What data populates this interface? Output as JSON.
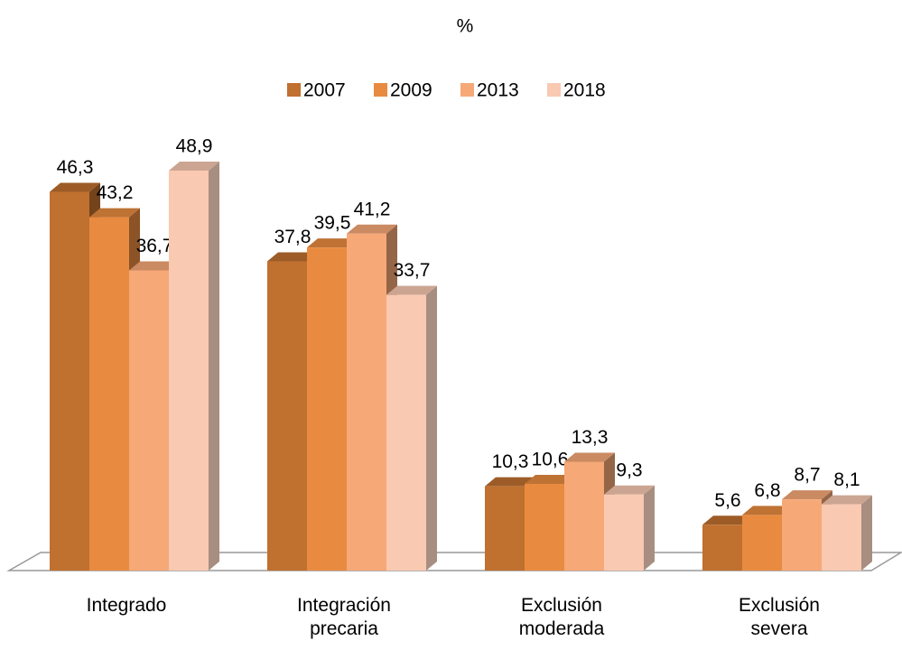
{
  "chart_data": {
    "type": "bar3d",
    "title": "%",
    "categories": [
      "Integrado",
      "Integración precaria",
      "Exclusión moderada",
      "Exclusión severa"
    ],
    "series": [
      {
        "name": "2007",
        "color": "#c0702f",
        "values": [
          46.3,
          37.8,
          10.3,
          5.6
        ],
        "value_labels": [
          "46,3",
          "37,8",
          "10,3",
          "5,6"
        ]
      },
      {
        "name": "2009",
        "color": "#e88b40",
        "values": [
          43.2,
          39.5,
          10.6,
          6.8
        ],
        "value_labels": [
          "43,2",
          "39,5",
          "10,6",
          "6,8"
        ]
      },
      {
        "name": "2013",
        "color": "#f6a877",
        "values": [
          36.7,
          41.2,
          13.3,
          8.7
        ],
        "value_labels": [
          "36,7",
          "41,2",
          "13,3",
          "8,7"
        ]
      },
      {
        "name": "2018",
        "color": "#f9c9b2",
        "values": [
          48.9,
          33.7,
          9.3,
          8.1
        ],
        "value_labels": [
          "48,9",
          "33,7",
          "9,3",
          "8,1"
        ]
      }
    ],
    "legend": "top"
  }
}
